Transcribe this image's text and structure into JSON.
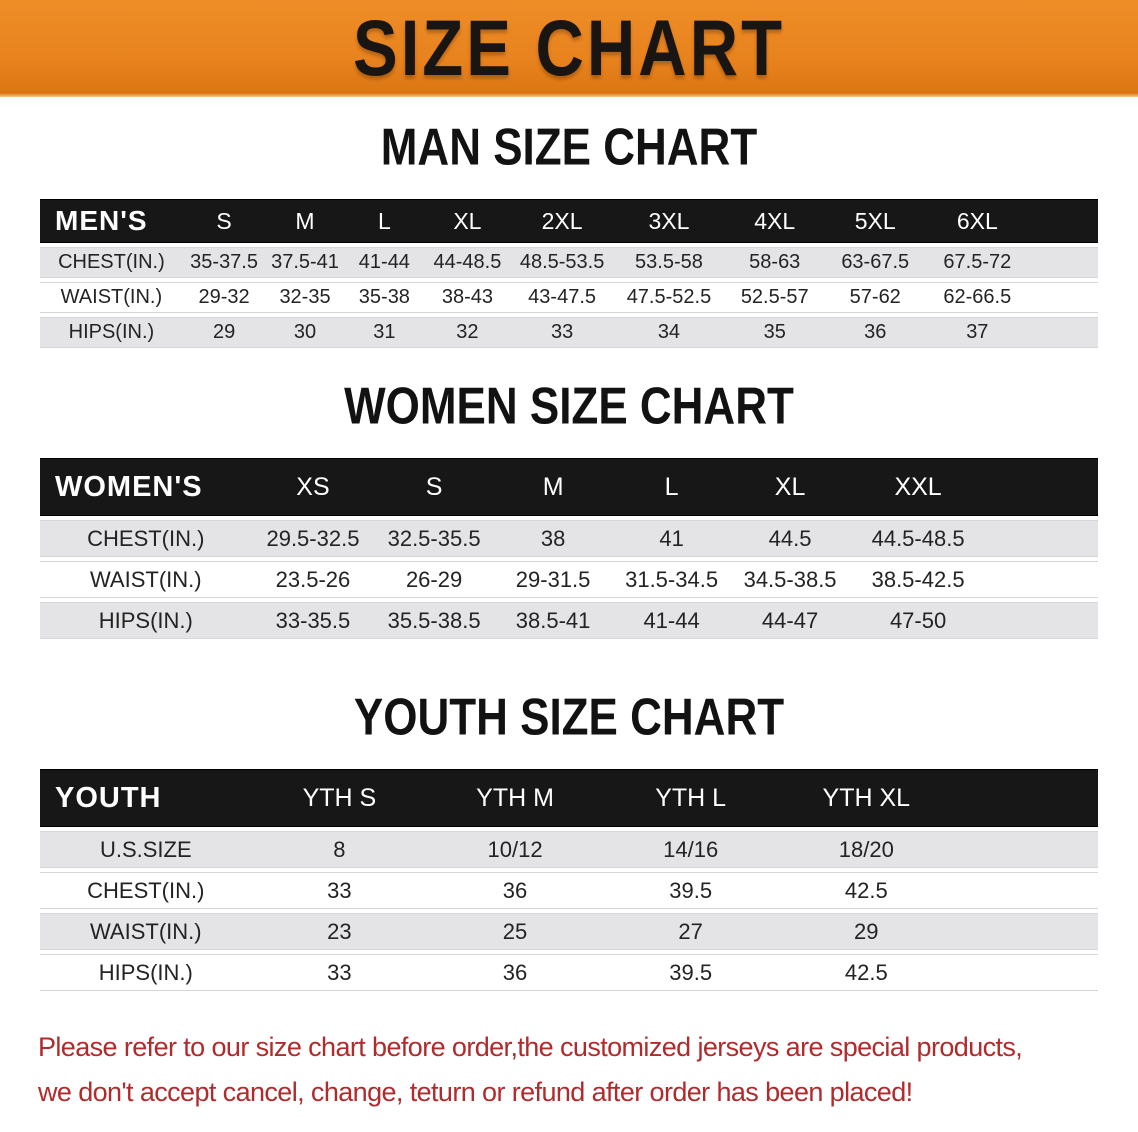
{
  "banner": {
    "title": "SIZE CHART"
  },
  "colors": {
    "banner_bg": "#E8831E",
    "header_bar_bg": "#171717",
    "shaded_row_bg": "#E4E4E6",
    "note_red": "#B12A2C"
  },
  "sections": [
    {
      "id": "men",
      "heading": "MAN SIZE CHART",
      "corner_label": "MEN'S",
      "columns": [
        "S",
        "M",
        "L",
        "XL",
        "2XL",
        "3XL",
        "4XL",
        "5XL",
        "6XL"
      ],
      "rows": [
        {
          "label": "CHEST(IN.)",
          "values": [
            "35-37.5",
            "37.5-41",
            "41-44",
            "44-48.5",
            "48.5-53.5",
            "53.5-58",
            "58-63",
            "63-67.5",
            "67.5-72"
          ]
        },
        {
          "label": "WAIST(IN.)",
          "values": [
            "29-32",
            "32-35",
            "35-38",
            "38-43",
            "43-47.5",
            "47.5-52.5",
            "52.5-57",
            "57-62",
            "62-66.5"
          ]
        },
        {
          "label": "HIPS(IN.)",
          "values": [
            "29",
            "30",
            "31",
            "32",
            "33",
            "34",
            "35",
            "36",
            "37"
          ]
        }
      ]
    },
    {
      "id": "women",
      "heading": "WOMEN SIZE CHART",
      "corner_label": "WOMEN'S",
      "columns": [
        "XS",
        "S",
        "M",
        "L",
        "XL",
        "XXL"
      ],
      "rows": [
        {
          "label": "CHEST(IN.)",
          "values": [
            "29.5-32.5",
            "32.5-35.5",
            "38",
            "41",
            "44.5",
            "44.5-48.5"
          ]
        },
        {
          "label": "WAIST(IN.)",
          "values": [
            "23.5-26",
            "26-29",
            "29-31.5",
            "31.5-34.5",
            "34.5-38.5",
            "38.5-42.5"
          ]
        },
        {
          "label": "HIPS(IN.)",
          "values": [
            "33-35.5",
            "35.5-38.5",
            "38.5-41",
            "41-44",
            "44-47",
            "47-50"
          ]
        }
      ]
    },
    {
      "id": "youth",
      "heading": "YOUTH SIZE CHART",
      "corner_label": "YOUTH",
      "columns": [
        "YTH S",
        "YTH M",
        "YTH L",
        "YTH XL"
      ],
      "rows": [
        {
          "label": "U.S.SIZE",
          "values": [
            "8",
            "10/12",
            "14/16",
            "18/20"
          ]
        },
        {
          "label": "CHEST(IN.)",
          "values": [
            "33",
            "36",
            "39.5",
            "42.5"
          ]
        },
        {
          "label": "WAIST(IN.)",
          "values": [
            "23",
            "25",
            "27",
            "29"
          ]
        },
        {
          "label": "HIPS(IN.)",
          "values": [
            "33",
            "36",
            "39.5",
            "42.5"
          ]
        }
      ]
    }
  ],
  "note": {
    "line1": "Please refer to our size chart before order,the customized jerseys are special products,",
    "line2": "we don't accept cancel, change, teturn or refund after order has been placed!"
  }
}
